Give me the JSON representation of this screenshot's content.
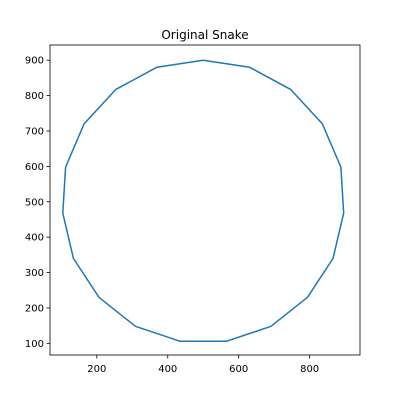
{
  "chart_data": {
    "type": "line",
    "title": "Original Snake",
    "xlabel": "",
    "ylabel": "",
    "xlim": [
      68,
      942
    ],
    "ylim": [
      67,
      943
    ],
    "xticks": [
      200,
      400,
      600,
      800
    ],
    "yticks": [
      100,
      200,
      300,
      400,
      500,
      600,
      700,
      800,
      900
    ],
    "grid": false,
    "series": [
      {
        "color": "#1f77b4",
        "x": [
          500,
          631,
          747,
          836,
          888,
          896,
          866,
          794,
          691,
          566,
          434,
          309,
          206,
          134,
          104,
          112,
          164,
          253,
          369,
          500
        ],
        "y": [
          900,
          880,
          817,
          720,
          598,
          468,
          340,
          230,
          148,
          106,
          106,
          148,
          230,
          340,
          468,
          598,
          720,
          817,
          880,
          900
        ]
      }
    ]
  }
}
